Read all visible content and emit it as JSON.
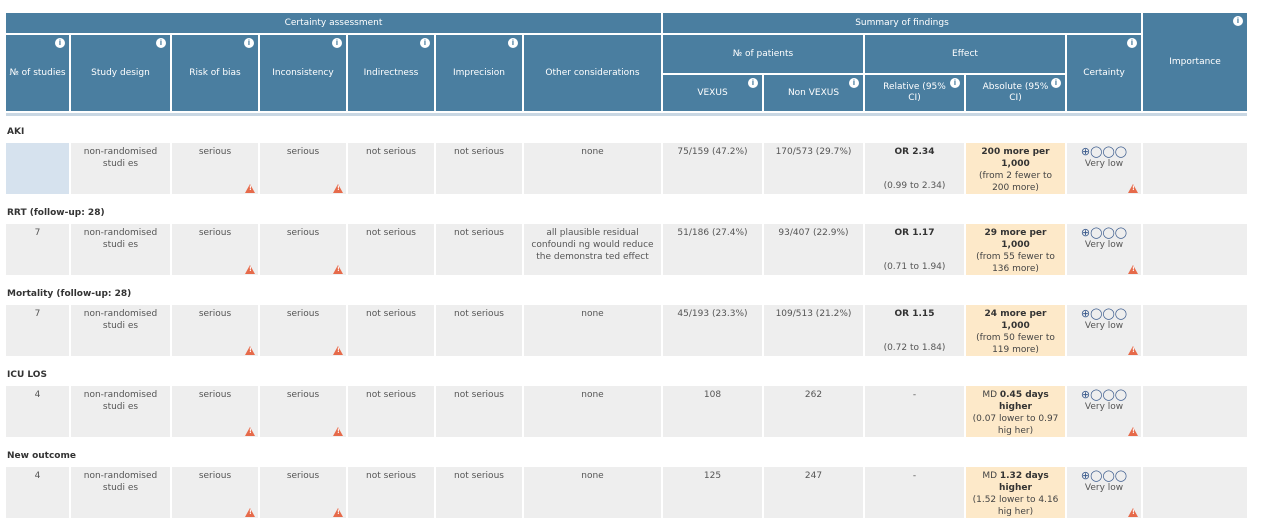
{
  "header": {
    "certainty_assessment": "Certainty assessment",
    "summary_of_findings": "Summary of findings",
    "num_studies": "№ of studies",
    "study_design": "Study design",
    "risk_of_bias": "Risk of bias",
    "inconsistency": "Inconsistency",
    "indirectness": "Indirectness",
    "imprecision": "Imprecision",
    "other_considerations": "Other considerations",
    "num_patients": "№ of patients",
    "effect": "Effect",
    "certainty": "Certainty",
    "importance": "Importance",
    "vexus": "VEXUS",
    "non_vexus": "Non VEXUS",
    "relative": "Relative (95% CI)",
    "absolute": "Absolute (95% CI)",
    "info_icon": "info-icon"
  },
  "colors": {
    "header_bg": "#4a7ea0",
    "row_bg": "#eeeeee",
    "absolute_bg": "#fde9c9",
    "warning": "#e66a4a"
  },
  "outcomes": [
    {
      "title": "AKI",
      "studies": "",
      "design": "non-randomised studi es",
      "risk_of_bias": "serious",
      "inconsistency": "serious",
      "indirectness": "not serious",
      "imprecision": "not serious",
      "other": "none",
      "vexus": "75/159 (47.2%)",
      "non_vexus": "170/573 (29.7%)",
      "relative_main": "OR 2.34",
      "relative_ci": "(0.99 to 2.34)",
      "absolute_prefix": "",
      "absolute_main": "200 more per 1,000",
      "absolute_ci": "(from 2 fewer to 200 more)",
      "certainty_symbols": "⊕◯◯◯",
      "certainty_label": "Very low",
      "importance": ""
    },
    {
      "title": "RRT (follow-up: 28)",
      "studies": "7",
      "design": "non-randomised studi es",
      "risk_of_bias": "serious",
      "inconsistency": "serious",
      "indirectness": "not serious",
      "imprecision": "not serious",
      "other": "all plausible residual confoundi ng would reduce the demonstra ted effect",
      "vexus": "51/186 (27.4%)",
      "non_vexus": "93/407 (22.9%)",
      "relative_main": "OR 1.17",
      "relative_ci": "(0.71 to 1.94)",
      "absolute_prefix": "",
      "absolute_main": "29 more per 1,000",
      "absolute_ci": "(from 55 fewer to 136 more)",
      "certainty_symbols": "⊕◯◯◯",
      "certainty_label": "Very low",
      "importance": ""
    },
    {
      "title": "Mortality (follow-up: 28)",
      "studies": "7",
      "design": "non-randomised studi es",
      "risk_of_bias": "serious",
      "inconsistency": "serious",
      "indirectness": "not serious",
      "imprecision": "not serious",
      "other": "none",
      "vexus": "45/193 (23.3%)",
      "non_vexus": "109/513 (21.2%)",
      "relative_main": "OR 1.15",
      "relative_ci": "(0.72 to 1.84)",
      "absolute_prefix": "",
      "absolute_main": "24 more per 1,000",
      "absolute_ci": "(from 50 fewer to 119 more)",
      "certainty_symbols": "⊕◯◯◯",
      "certainty_label": "Very low",
      "importance": ""
    },
    {
      "title": "ICU LOS",
      "studies": "4",
      "design": "non-randomised studi es",
      "risk_of_bias": "serious",
      "inconsistency": "serious",
      "indirectness": "not serious",
      "imprecision": "not serious",
      "other": "none",
      "vexus": "108",
      "non_vexus": "262",
      "relative_main": "-",
      "relative_ci": "",
      "absolute_prefix": "MD ",
      "absolute_main": "0.45 days higher",
      "absolute_ci": "(0.07 lower to 0.97 hig her)",
      "certainty_symbols": "⊕◯◯◯",
      "certainty_label": "Very low",
      "importance": ""
    },
    {
      "title": "New outcome",
      "studies": "4",
      "design": "non-randomised studi es",
      "risk_of_bias": "serious",
      "inconsistency": "serious",
      "indirectness": "not serious",
      "imprecision": "not serious",
      "other": "none",
      "vexus": "125",
      "non_vexus": "247",
      "relative_main": "-",
      "relative_ci": "",
      "absolute_prefix": "MD ",
      "absolute_main": "1.32 days higher",
      "absolute_ci": "(1.52 lower to 4.16 hig her)",
      "certainty_symbols": "⊕◯◯◯",
      "certainty_label": "Very low",
      "importance": ""
    }
  ]
}
